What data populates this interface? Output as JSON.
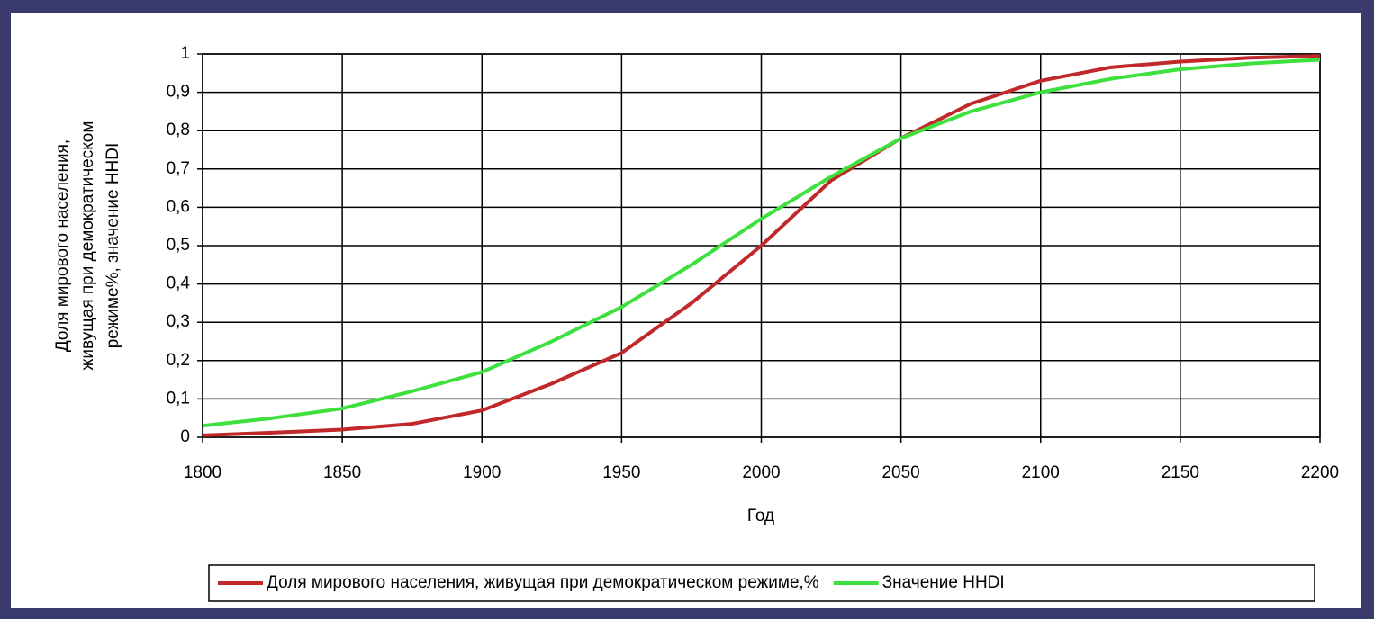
{
  "chart_data": {
    "type": "line",
    "ylabel": [
      "Доля мирового населения,",
      "живущая при демократическом",
      "режиме%, значение HHDI"
    ],
    "xlabel": "Год",
    "x": [
      1800,
      1825,
      1850,
      1875,
      1900,
      1925,
      1950,
      1975,
      2000,
      2025,
      2050,
      2075,
      2100,
      2125,
      2150,
      2175,
      2200
    ],
    "series": [
      {
        "name": "Доля мирового населения, живущая при демократическом режиме,%",
        "color": "#c0282a",
        "values": [
          0.005,
          0.012,
          0.02,
          0.035,
          0.07,
          0.14,
          0.22,
          0.35,
          0.5,
          0.67,
          0.78,
          0.87,
          0.93,
          0.965,
          0.98,
          0.99,
          0.995
        ]
      },
      {
        "name": "Значение HHDI",
        "color": "#3ee03e",
        "values": [
          0.03,
          0.05,
          0.075,
          0.12,
          0.17,
          0.25,
          0.34,
          0.45,
          0.57,
          0.68,
          0.78,
          0.85,
          0.9,
          0.935,
          0.96,
          0.975,
          0.985
        ]
      }
    ],
    "xlim": [
      1800,
      2200
    ],
    "xticks": [
      1800,
      1850,
      1900,
      1950,
      2000,
      2050,
      2100,
      2150,
      2200
    ],
    "ylim": [
      0,
      1
    ],
    "yticks": [
      0,
      {
        "value": 0.1,
        "label": "0,1"
      },
      {
        "value": 0.2,
        "label": "0,2"
      },
      {
        "value": 0.3,
        "label": "0,3"
      },
      {
        "value": 0.4,
        "label": "0,4"
      },
      {
        "value": 0.5,
        "label": "0,5"
      },
      {
        "value": 0.6,
        "label": "0,6"
      },
      {
        "value": 0.7,
        "label": "0,7"
      },
      {
        "value": 0.8,
        "label": "0,8"
      },
      {
        "value": 0.9,
        "label": "0,9"
      },
      1
    ],
    "grid": true,
    "legend": "bottom"
  }
}
